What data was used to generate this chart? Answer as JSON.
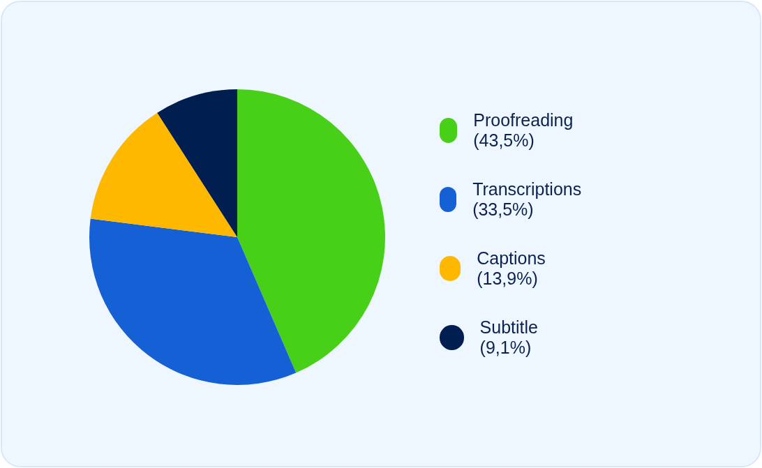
{
  "chart_data": {
    "type": "pie",
    "categories": [
      "Proofreading (43,5%)",
      "Transcriptions (33,5%)",
      "Captions (13,9%)",
      "Subtitle (9,1%)"
    ],
    "values": [
      43.5,
      33.5,
      13.9,
      9.1
    ],
    "colors": [
      "#48cf17",
      "#1560d4",
      "#ffb800",
      "#001e50"
    ],
    "legend": "right"
  }
}
